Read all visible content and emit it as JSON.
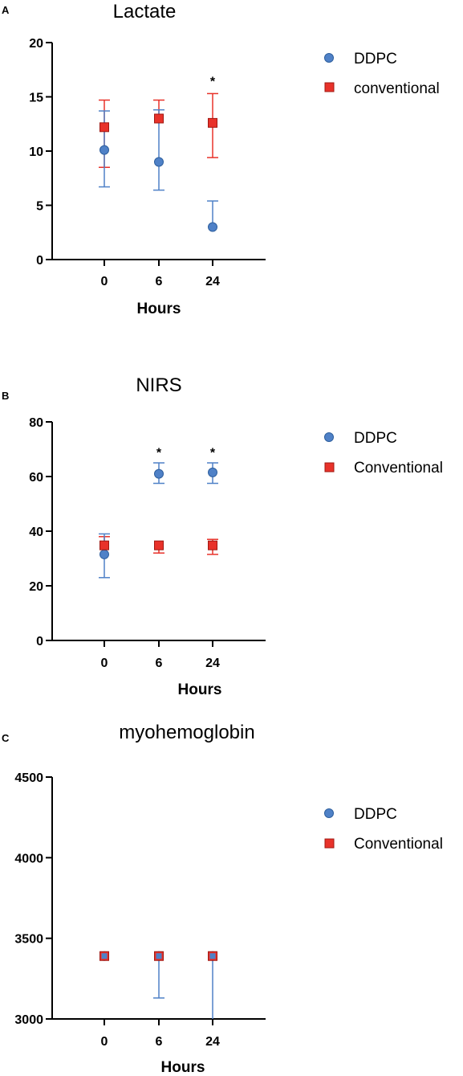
{
  "colors": {
    "DDPC": "#4f81c7",
    "DDPC_stroke": "#2e5f9e",
    "conventional": "#e8322a",
    "conventional_stroke": "#a01812"
  },
  "chart_data": [
    {
      "panel": "A",
      "type": "scatter",
      "title": "Lactate",
      "xlabel": "Hours",
      "ylabel": "",
      "categories": [
        "0",
        "6",
        "24"
      ],
      "ylim": [
        0,
        20
      ],
      "yticks": [
        0,
        5,
        10,
        15,
        20
      ],
      "legend_position": "top-right",
      "series": [
        {
          "name": "DDPC",
          "marker": "circle",
          "values": [
            10.1,
            9.0,
            3.0
          ],
          "err_low": [
            6.7,
            6.4,
            3.0
          ],
          "err_high": [
            13.7,
            13.8,
            5.4
          ]
        },
        {
          "name": "conventional",
          "marker": "square",
          "values": [
            12.2,
            13.0,
            12.6
          ],
          "err_low": [
            8.5,
            13.0,
            9.4
          ],
          "err_high": [
            14.7,
            14.7,
            15.3
          ]
        }
      ],
      "annotations": [
        {
          "category": "24",
          "text": "*",
          "y": 16.5
        }
      ]
    },
    {
      "panel": "B",
      "type": "scatter",
      "title": "NIRS",
      "xlabel": "Hours",
      "ylabel": "",
      "categories": [
        "0",
        "6",
        "24"
      ],
      "ylim": [
        0,
        80
      ],
      "yticks": [
        0,
        20,
        40,
        60,
        80
      ],
      "legend_position": "top-right",
      "series": [
        {
          "name": "DDPC",
          "marker": "circle",
          "values": [
            31.5,
            61.0,
            61.5
          ],
          "err_low": [
            23.0,
            57.5,
            57.5
          ],
          "err_high": [
            39.0,
            65.0,
            65.0
          ]
        },
        {
          "name": "Conventional",
          "marker": "square",
          "values": [
            34.8,
            34.8,
            34.8
          ],
          "err_low": [
            34.8,
            32.0,
            31.5
          ],
          "err_high": [
            38.0,
            34.8,
            37.0
          ]
        }
      ],
      "annotations": [
        {
          "category": "6",
          "text": "*",
          "y": 69
        },
        {
          "category": "24",
          "text": "*",
          "y": 69
        }
      ]
    },
    {
      "panel": "C",
      "type": "scatter",
      "title": "myohemoglobin",
      "xlabel": "Hours",
      "ylabel": "",
      "categories": [
        "0",
        "6",
        "24"
      ],
      "ylim": [
        3000,
        4500
      ],
      "yticks": [
        3000,
        3500,
        4000,
        4500
      ],
      "legend_position": "top-right",
      "series": [
        {
          "name": "DDPC",
          "marker": "circle",
          "values": [
            3390,
            3390,
            3390
          ],
          "err_low": [
            3390,
            3130,
            3000
          ],
          "err_high": [
            3390,
            3390,
            3390
          ]
        },
        {
          "name": "Conventional",
          "marker": "square",
          "values": [
            3390,
            3390,
            3390
          ],
          "err_low": [
            3390,
            3390,
            3390
          ],
          "err_high": [
            3390,
            3390,
            3390
          ]
        }
      ],
      "annotations": []
    }
  ]
}
